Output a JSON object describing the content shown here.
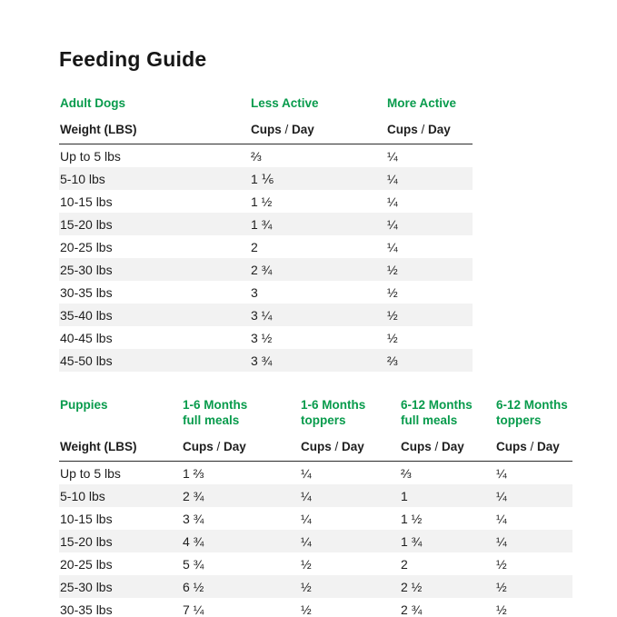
{
  "page": {
    "title": "Feeding Guide"
  },
  "colors": {
    "accent_green": "#089B4C",
    "stripe_gray": "#F2F2F2",
    "text": "#1E1E1E"
  },
  "labels": {
    "weight": "Weight (LBS)",
    "cups": "Cups",
    "slash": " / ",
    "day": "Day"
  },
  "adult_table": {
    "group_headers": [
      {
        "line1": "Adult Dogs",
        "line2": ""
      },
      {
        "line1": "Less Active",
        "line2": ""
      },
      {
        "line1": "More Active",
        "line2": ""
      }
    ],
    "rows": [
      [
        "Up to 5 lbs",
        "⅔",
        "¼"
      ],
      [
        "5-10 lbs",
        "1 ⅙",
        "¼"
      ],
      [
        "10-15 lbs",
        "1 ½",
        "¼"
      ],
      [
        "15-20 lbs",
        "1 ¾",
        "¼"
      ],
      [
        "20-25 lbs",
        "2",
        "¼"
      ],
      [
        "25-30 lbs",
        "2 ¾",
        "½"
      ],
      [
        "30-35 lbs",
        "3",
        "½"
      ],
      [
        "35-40 lbs",
        "3 ¼",
        "½"
      ],
      [
        "40-45 lbs",
        "3 ½",
        "½"
      ],
      [
        "45-50 lbs",
        "3 ¾",
        "⅔"
      ]
    ]
  },
  "puppy_table": {
    "group_headers": [
      {
        "line1": "Puppies",
        "line2": ""
      },
      {
        "line1": "1-6 Months",
        "line2": "full meals"
      },
      {
        "line1": "1-6 Months",
        "line2": "toppers"
      },
      {
        "line1": "6-12 Months",
        "line2": "full meals"
      },
      {
        "line1": "6-12 Months",
        "line2": "toppers"
      }
    ],
    "rows": [
      [
        "Up to 5 lbs",
        "1 ⅔",
        "¼",
        "⅔",
        "¼"
      ],
      [
        "5-10 lbs",
        "2 ¾",
        "¼",
        "1",
        "¼"
      ],
      [
        "10-15 lbs",
        "3 ¾",
        "¼",
        "1 ½",
        "¼"
      ],
      [
        "15-20 lbs",
        "4 ¾",
        "¼",
        "1 ¾",
        "¼"
      ],
      [
        "20-25 lbs",
        "5 ¾",
        "½",
        "2",
        "½"
      ],
      [
        "25-30 lbs",
        "6 ½",
        "½",
        "2 ½",
        "½"
      ],
      [
        "30-35 lbs",
        "7 ¼",
        "½",
        "2 ¾",
        "½"
      ]
    ]
  }
}
